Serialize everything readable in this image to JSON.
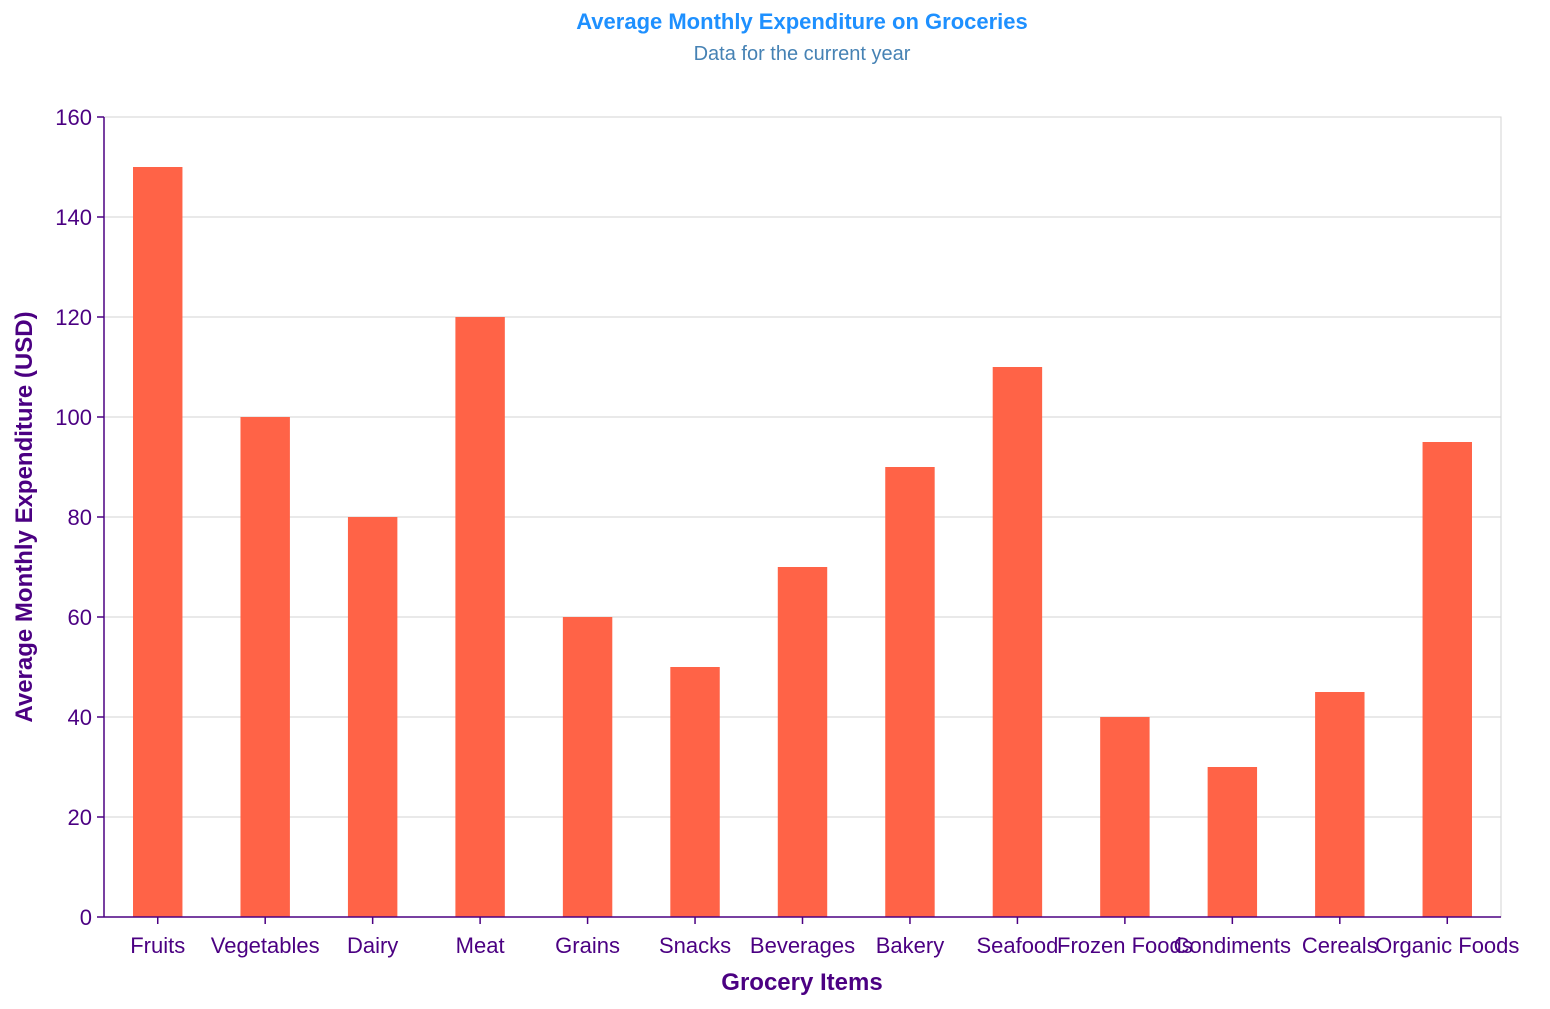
{
  "colors": {
    "title": "#1E90FF",
    "subtitle": "#4682B4",
    "axis": "#4B0082",
    "bar": "#FF6347",
    "grid": "#D3D3D3",
    "frame": "#D3D3D3",
    "background": "#FFFFFF"
  },
  "chart_data": {
    "type": "bar",
    "title": "Average Monthly Expenditure on Groceries",
    "subtitle": "Data for the current year",
    "xlabel": "Grocery Items",
    "ylabel": "Average Monthly Expenditure (USD)",
    "categories": [
      "Fruits",
      "Vegetables",
      "Dairy",
      "Meat",
      "Grains",
      "Snacks",
      "Beverages",
      "Bakery",
      "Seafood",
      "Frozen Foods",
      "Condiments",
      "Cereals",
      "Organic Foods"
    ],
    "values": [
      150,
      100,
      80,
      120,
      60,
      50,
      70,
      90,
      110,
      40,
      30,
      45,
      95
    ],
    "ylim": [
      0,
      160
    ],
    "yticks": [
      0,
      20,
      40,
      60,
      80,
      100,
      120,
      140,
      160
    ],
    "grid": true,
    "legend": "none"
  }
}
